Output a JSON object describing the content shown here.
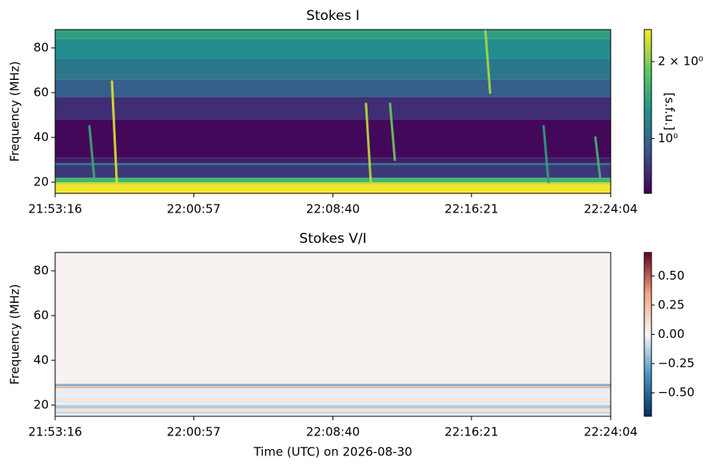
{
  "chart_data": [
    {
      "type": "spectrogram",
      "title": "Stokes I",
      "ylabel": "Frequency (MHz)",
      "xlim": [
        "21:53:16",
        "22:24:04"
      ],
      "xticks": [
        "21:53:16",
        "22:00:57",
        "22:08:40",
        "22:16:21",
        "22:24:04"
      ],
      "ylim": [
        15,
        88.2
      ],
      "yticks": [
        20,
        40,
        60,
        80
      ],
      "colorbar": {
        "label": "[s.f.u.]",
        "scale": "log",
        "colormap": "viridis",
        "lim": [
          0.61,
          2.67
        ],
        "ticks": [
          {
            "value": 2,
            "label": "2 × 10⁰"
          },
          {
            "value": 1,
            "label": "10⁰"
          }
        ]
      },
      "freq_edges": [
        15,
        16,
        19,
        20,
        22,
        27.5,
        28.5,
        31,
        48,
        58,
        66,
        75,
        84,
        88.2
      ],
      "levels": [
        2.65,
        2.6,
        2.3,
        1.6,
        0.78,
        1.05,
        0.7,
        0.63,
        0.75,
        0.95,
        1.1,
        1.25,
        1.4
      ],
      "bursts": [
        {
          "x": "21:55:10",
          "freq": [
            22,
            45
          ],
          "value": 1.5
        },
        {
          "x": "21:56:25",
          "freq": [
            20,
            65
          ],
          "value": 2.5
        },
        {
          "x": "22:10:30",
          "freq": [
            20,
            55
          ],
          "value": 2.3
        },
        {
          "x": "22:11:50",
          "freq": [
            30,
            55
          ],
          "value": 1.9
        },
        {
          "x": "22:17:07",
          "freq": [
            60,
            88
          ],
          "value": 2.2
        },
        {
          "x": "22:20:21",
          "freq": [
            20,
            45
          ],
          "value": 1.4
        },
        {
          "x": "22:23:13",
          "freq": [
            22,
            40
          ],
          "value": 1.6
        }
      ]
    },
    {
      "type": "spectrogram",
      "title": "Stokes V/I",
      "ylabel": "Frequency (MHz)",
      "xlabel": "Time (UTC) on 2026-08-30",
      "xlim": [
        "21:53:16",
        "22:24:04"
      ],
      "xticks": [
        "21:53:16",
        "22:00:57",
        "22:08:40",
        "22:16:21",
        "22:24:04"
      ],
      "ylim": [
        15,
        88.2
      ],
      "yticks": [
        20,
        40,
        60,
        80
      ],
      "colorbar": {
        "scale": "linear",
        "colormap": "RdBu_r",
        "lim": [
          -0.7,
          0.7
        ],
        "ticks": [
          {
            "value": 0.5,
            "label": "0.50"
          },
          {
            "value": 0.25,
            "label": "0.25"
          },
          {
            "value": 0,
            "label": "0.00"
          },
          {
            "value": -0.25,
            "label": "−0.25"
          },
          {
            "value": -0.5,
            "label": "−0.50"
          }
        ]
      },
      "freq_edges": [
        15,
        16,
        17,
        18.5,
        20,
        21,
        22,
        23,
        27.5,
        28.5,
        29.5,
        88.2
      ],
      "levels": [
        0,
        -0.1,
        0.1,
        -0.15,
        0.05,
        -0.05,
        0.08,
        -0.03,
        0.25,
        -0.25,
        0.02
      ],
      "bursts": []
    }
  ]
}
